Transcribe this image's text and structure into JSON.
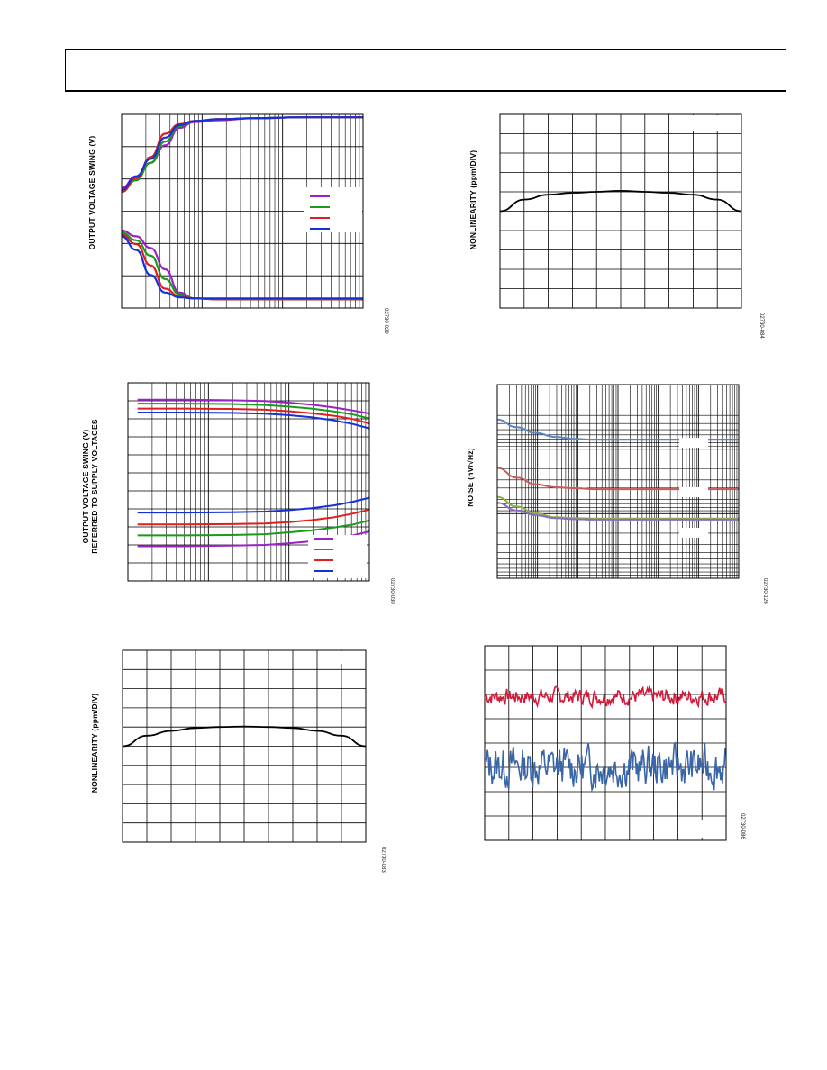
{
  "page": {
    "header": ""
  },
  "figures": [
    {
      "id": "fig-a",
      "ylabel": "OUTPUT VOLTAGE SWING (V)",
      "figure_id": "02730-029",
      "chart_data": {
        "type": "line",
        "title": "",
        "xlabel": "",
        "ylabel": "OUTPUT VOLTAGE SWING (V)",
        "x_scale": "log",
        "grid": true,
        "legend": "right",
        "x_rel": [
          0.0,
          0.06,
          0.12,
          0.18,
          0.24,
          0.3,
          0.4,
          0.55,
          0.75,
          1.0
        ],
        "series": [
          {
            "color": "#9a22c8",
            "values_top": [
              0.62,
              0.68,
              0.75,
              0.84,
              0.93,
              0.96,
              0.97,
              0.98,
              0.985,
              0.985
            ],
            "values_bottom": [
              0.4,
              0.37,
              0.31,
              0.2,
              0.08,
              0.05,
              0.045,
              0.045,
              0.045,
              0.045
            ]
          },
          {
            "color": "#1a9a1a",
            "values_top": [
              0.6,
              0.66,
              0.75,
              0.86,
              0.94,
              0.965,
              0.975,
              0.98,
              0.985,
              0.985
            ],
            "values_bottom": [
              0.39,
              0.35,
              0.27,
              0.15,
              0.07,
              0.05,
              0.045,
              0.045,
              0.045,
              0.045
            ]
          },
          {
            "color": "#e01e1e",
            "values_top": [
              0.6,
              0.67,
              0.78,
              0.9,
              0.95,
              0.965,
              0.975,
              0.98,
              0.985,
              0.985
            ],
            "values_bottom": [
              0.38,
              0.33,
              0.22,
              0.1,
              0.06,
              0.05,
              0.045,
              0.045,
              0.045,
              0.045
            ]
          },
          {
            "color": "#1530d8",
            "values_top": [
              0.61,
              0.68,
              0.77,
              0.88,
              0.945,
              0.965,
              0.975,
              0.98,
              0.985,
              0.985
            ],
            "values_bottom": [
              0.37,
              0.3,
              0.17,
              0.08,
              0.055,
              0.05,
              0.05,
              0.05,
              0.05,
              0.05
            ]
          }
        ]
      }
    },
    {
      "id": "fig-b",
      "ylabel": "NONLINEARITY (ppm/DIV)",
      "figure_id": "02730-084",
      "chart_data": {
        "type": "line",
        "title": "",
        "xlabel": "",
        "ylabel": "NONLINEARITY (ppm/DIV)",
        "grid": true,
        "x_rel": [
          0.0,
          0.1,
          0.2,
          0.3,
          0.4,
          0.5,
          0.6,
          0.7,
          0.8,
          0.9,
          1.0
        ],
        "series": [
          {
            "color": "#000000",
            "values": [
              0.5,
              0.56,
              0.585,
              0.595,
              0.6,
              0.605,
              0.6,
              0.595,
              0.585,
              0.56,
              0.5
            ]
          }
        ]
      }
    },
    {
      "id": "fig-c",
      "ylabel": "OUTPUT VOLTAGE SWING (V)",
      "ylabel2": "REFERRED TO SUPPLY VOLTAGES",
      "figure_id": "02730-030",
      "chart_data": {
        "type": "line",
        "title": "",
        "xlabel": "",
        "ylabel": "OUTPUT VOLTAGE SWING (V) REFERRED TO SUPPLY VOLTAGES",
        "x_scale": "log",
        "grid": true,
        "legend": "bottom-right",
        "x_rel": [
          0.0,
          0.2,
          0.4,
          0.55,
          0.65,
          0.75,
          0.85,
          0.93,
          1.0
        ],
        "series": [
          {
            "color": "#9a22c8",
            "values_top": [
              0.915,
              0.915,
              0.912,
              0.908,
              0.9,
              0.89,
              0.875,
              0.86,
              0.845
            ],
            "values_bottom": [
              0.175,
              0.175,
              0.178,
              0.182,
              0.19,
              0.2,
              0.215,
              0.23,
              0.25
            ]
          },
          {
            "color": "#1a9a1a",
            "values_top": [
              0.895,
              0.895,
              0.893,
              0.888,
              0.88,
              0.87,
              0.855,
              0.84,
              0.82
            ],
            "values_bottom": [
              0.23,
              0.23,
              0.232,
              0.236,
              0.245,
              0.255,
              0.27,
              0.285,
              0.305
            ]
          },
          {
            "color": "#e01e1e",
            "values_top": [
              0.87,
              0.87,
              0.868,
              0.864,
              0.857,
              0.847,
              0.833,
              0.817,
              0.795
            ],
            "values_bottom": [
              0.285,
              0.285,
              0.287,
              0.29,
              0.297,
              0.307,
              0.322,
              0.34,
              0.36
            ]
          },
          {
            "color": "#1530d8",
            "values_top": [
              0.85,
              0.85,
              0.848,
              0.844,
              0.837,
              0.826,
              0.81,
              0.792,
              0.77
            ],
            "values_bottom": [
              0.345,
              0.345,
              0.347,
              0.35,
              0.357,
              0.367,
              0.382,
              0.4,
              0.42
            ]
          }
        ]
      }
    },
    {
      "id": "fig-d",
      "ylabel": "NOISE (nV/√Hz)",
      "figure_id": "02730-126",
      "chart_data": {
        "type": "line",
        "title": "",
        "xlabel": "",
        "ylabel": "NOISE (nV/√Hz)",
        "x_scale": "log",
        "y_scale": "log",
        "grid": true,
        "x_rel": [
          0.0,
          0.08,
          0.16,
          0.24,
          0.32,
          0.4,
          0.55,
          0.75,
          1.0
        ],
        "series": [
          {
            "color": "#5b86c2",
            "values": [
              0.82,
              0.78,
              0.75,
              0.73,
              0.72,
              0.715,
              0.715,
              0.715,
              0.715
            ]
          },
          {
            "color": "#c85a5a",
            "values": [
              0.57,
              0.52,
              0.485,
              0.47,
              0.465,
              0.46,
              0.46,
              0.46,
              0.46
            ]
          },
          {
            "color": "#8cb04a",
            "values": [
              0.42,
              0.37,
              0.335,
              0.315,
              0.31,
              0.308,
              0.308,
              0.308,
              0.308
            ]
          },
          {
            "color": "#8a6cc0",
            "values": [
              0.39,
              0.35,
              0.325,
              0.31,
              0.305,
              0.303,
              0.303,
              0.303,
              0.303
            ]
          }
        ]
      }
    },
    {
      "id": "fig-e",
      "ylabel": "NONLINEARITY (ppm/DIV)",
      "figure_id": "02730-083",
      "chart_data": {
        "type": "line",
        "title": "",
        "xlabel": "",
        "ylabel": "NONLINEARITY (ppm/DIV)",
        "grid": true,
        "x_rel": [
          0.0,
          0.1,
          0.2,
          0.3,
          0.4,
          0.5,
          0.6,
          0.7,
          0.8,
          0.9,
          1.0
        ],
        "series": [
          {
            "color": "#000000",
            "values": [
              0.5,
              0.555,
              0.58,
              0.595,
              0.6,
              0.603,
              0.6,
              0.595,
              0.58,
              0.555,
              0.5
            ]
          }
        ]
      }
    },
    {
      "id": "fig-f",
      "ylabel": "",
      "figure_id": "02730-086",
      "chart_data": {
        "type": "line",
        "title": "",
        "xlabel": "",
        "ylabel": "",
        "grid": true,
        "series": [
          {
            "color": "#d11a3a",
            "level": 0.74,
            "amplitude": 0.035,
            "points": 260,
            "seed": 7
          },
          {
            "color": "#3a66a8",
            "level": 0.38,
            "amplitude": 0.09,
            "points": 260,
            "seed": 13
          }
        ]
      }
    }
  ]
}
